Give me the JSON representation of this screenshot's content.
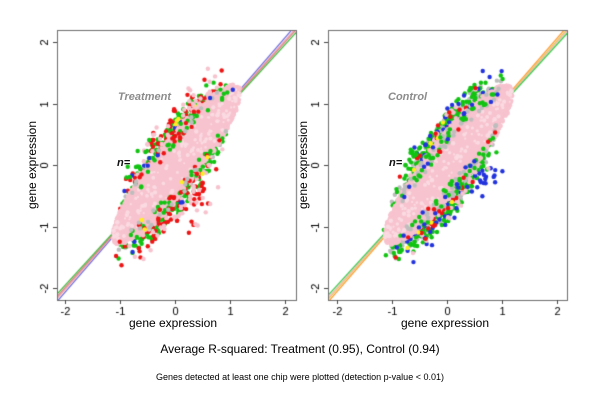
{
  "figure": {
    "background": "#ffffff",
    "caption_primary": "Average R-squared: Treatment (0.95), Control (0.94)",
    "caption_secondary": "Genes detected at least one chip were plotted (detection p-value < 0.01)",
    "frame_color": "#6e6e6e",
    "tick_color": "#444444",
    "text_color": "#000000",
    "panel_label_color": "#8c8c8c"
  },
  "chart_data": [
    {
      "type": "scatter",
      "panel_label": "Treatment",
      "annotation": "n=",
      "xlabel": "gene expression",
      "ylabel": "gene expression",
      "xticks": [
        -2,
        -1,
        0,
        1,
        2
      ],
      "yticks": [
        -2,
        -1,
        0,
        1,
        2
      ],
      "xlim": [
        -2.2,
        2.2
      ],
      "ylim": [
        -2.2,
        2.2
      ],
      "grid": false,
      "r_squared": 0.95,
      "seed": 7,
      "lens": {
        "color": "#f7c3ce",
        "light": "#fbdae2",
        "u_min": -1.13,
        "u_max": 1.19,
        "shift": -0.02,
        "half_width": 0.52,
        "edge_n": 700
      },
      "lines": [
        {
          "color": "#6b6bdf",
          "slope": 1.035
        },
        {
          "color": "#f2a0a8",
          "slope": 1.012
        },
        {
          "color": "#d98080",
          "slope": 0.998
        },
        {
          "color": "#3dbb3d",
          "slope": 0.978
        }
      ],
      "halo": [
        {
          "color": "#bdbdbd",
          "n": 80,
          "u": [
            -1.1,
            1.0
          ],
          "d": [
            0.0,
            0.12
          ],
          "side": 0
        },
        {
          "color": "#12c412",
          "n": 280,
          "u": [
            -1.15,
            1.05
          ],
          "d": [
            0.0,
            0.3
          ],
          "side": 0
        },
        {
          "color": "#ee1414",
          "n": 150,
          "u": [
            -1.1,
            1.0
          ],
          "d": [
            0.02,
            0.45
          ],
          "side": 0
        },
        {
          "color": "#f7c3ce",
          "n": 80,
          "u": [
            -1.0,
            1.0
          ],
          "d": [
            0.08,
            0.55
          ],
          "side": 0
        },
        {
          "color": "#2233dd",
          "n": 12,
          "u": [
            -1.1,
            0.4
          ],
          "d": [
            0.0,
            0.25
          ],
          "side": 0
        },
        {
          "color": "#ffee22",
          "n": 7,
          "u": [
            -0.7,
            0.6
          ],
          "d": [
            0.0,
            0.22
          ],
          "side": 0
        },
        {
          "color": "#ee1414",
          "n": 10,
          "u": [
            0.0,
            0.8
          ],
          "d": [
            0.4,
            0.85
          ],
          "side": -1
        },
        {
          "color": "#f7c3ce",
          "n": 8,
          "u": [
            0.3,
            0.9
          ],
          "d": [
            0.45,
            0.9
          ],
          "side": -1
        },
        {
          "color": "#12c412",
          "n": 6,
          "u": [
            -1.0,
            -0.2
          ],
          "d": [
            0.3,
            0.6
          ],
          "side": 1
        }
      ],
      "edge_dots": [
        {
          "color": "#12c412",
          "n": 60
        },
        {
          "color": "#ee1414",
          "n": 38
        },
        {
          "color": "#bdbdbd",
          "n": 28
        },
        {
          "color": "#ffee22",
          "n": 4
        },
        {
          "color": "#2233dd",
          "n": 4
        }
      ]
    },
    {
      "type": "scatter",
      "panel_label": "Control",
      "annotation": "n=",
      "xlabel": "gene expression",
      "ylabel": "gene expression",
      "xticks": [
        -2,
        -1,
        0,
        1,
        2
      ],
      "yticks": [
        -2,
        -1,
        0,
        1,
        2
      ],
      "xlim": [
        -2.2,
        2.2
      ],
      "ylim": [
        -2.2,
        2.2
      ],
      "grid": false,
      "r_squared": 0.94,
      "seed": 99,
      "lens": {
        "color": "#f7c3ce",
        "light": "#fbdae2",
        "u_min": -1.13,
        "u_max": 1.19,
        "shift": -0.02,
        "half_width": 0.52,
        "edge_n": 700
      },
      "lines": [
        {
          "color": "#ff9933",
          "slope": 1.03
        },
        {
          "color": "#e8c84a",
          "slope": 1.01
        },
        {
          "color": "#f4b8c0",
          "slope": 0.998
        },
        {
          "color": "#39cc4a",
          "slope": 0.98
        }
      ],
      "halo": [
        {
          "color": "#bdbdbd",
          "n": 340,
          "u": [
            -1.15,
            1.05
          ],
          "d": [
            0.0,
            0.28
          ],
          "side": 0
        },
        {
          "color": "#12c412",
          "n": 280,
          "u": [
            -1.15,
            1.05
          ],
          "d": [
            0.02,
            0.38
          ],
          "side": 0
        },
        {
          "color": "#2233dd",
          "n": 70,
          "u": [
            -1.0,
            1.05
          ],
          "d": [
            0.05,
            0.5
          ],
          "side": 0
        },
        {
          "color": "#f7c3ce",
          "n": 45,
          "u": [
            -0.9,
            0.9
          ],
          "d": [
            0.05,
            0.4
          ],
          "side": 0
        },
        {
          "color": "#ee1414",
          "n": 45,
          "u": [
            -1.05,
            0.9
          ],
          "d": [
            0.0,
            0.35
          ],
          "side": 0
        },
        {
          "color": "#ffee22",
          "n": 16,
          "u": [
            -1.0,
            0.5
          ],
          "d": [
            0.0,
            0.3
          ],
          "side": 0
        },
        {
          "color": "#2233dd",
          "n": 14,
          "u": [
            0.3,
            1.0
          ],
          "d": [
            0.3,
            0.8
          ],
          "side": -1
        },
        {
          "color": "#12c412",
          "n": 6,
          "u": [
            -0.9,
            -0.3
          ],
          "d": [
            0.3,
            0.55
          ],
          "side": 1
        }
      ],
      "edge_dots": [
        {
          "color": "#bdbdbd",
          "n": 95
        },
        {
          "color": "#12c412",
          "n": 65
        },
        {
          "color": "#2233dd",
          "n": 22
        },
        {
          "color": "#ee1414",
          "n": 10
        }
      ]
    }
  ]
}
